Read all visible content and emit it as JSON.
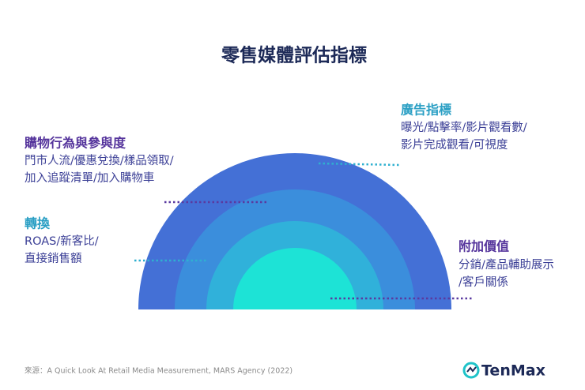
{
  "title": "零售媒體評估指標",
  "sections": [
    {
      "heading": "廣告指標",
      "lines": [
        "曝光/點擊率/影片觀看數/",
        "影片完成觀看/可視度"
      ]
    },
    {
      "heading": "購物行為與參與度",
      "lines": [
        "門市人流/優惠兌換/樣品領取/",
        "加入追蹤清單/加入購物車"
      ]
    },
    {
      "heading": "轉換",
      "lines": [
        "ROAS/新客比/",
        "直接銷售額"
      ]
    },
    {
      "heading": "附加價值",
      "lines": [
        "分銷/產品輔助展示",
        "/客戶關係"
      ]
    }
  ],
  "source": "來源：A Quick Look At Retail Media Measurement, MARS Agency (2022)",
  "logo": "TenMax"
}
